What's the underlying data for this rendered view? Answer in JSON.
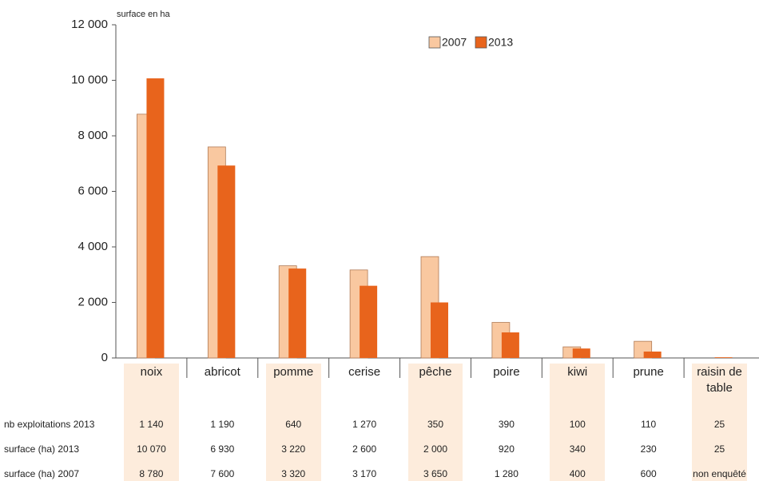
{
  "chart_data": {
    "type": "bar",
    "y_label": "surface en ha",
    "categories": [
      "noix",
      "abricot",
      "pomme",
      "cerise",
      "pêche",
      "poire",
      "kiwi",
      "prune",
      "raisin de table"
    ],
    "series": [
      {
        "name": "2007",
        "color": "#f9c8a0",
        "row_label": "surface (ha) 2007",
        "values": [
          8780,
          7600,
          3320,
          3170,
          3650,
          1280,
          400,
          600,
          null
        ],
        "value_labels": [
          "8 780",
          "7 600",
          "3 320",
          "3 170",
          "3 650",
          "1 280",
          "400",
          "600",
          "non enquêté"
        ]
      },
      {
        "name": "2013",
        "color": "#e8641c",
        "row_label": "surface (ha) 2013",
        "values": [
          10070,
          6930,
          3220,
          2600,
          2000,
          920,
          340,
          230,
          25
        ],
        "value_labels": [
          "10 070",
          "6 930",
          "3 220",
          "2 600",
          "2 000",
          "920",
          "340",
          "230",
          "25"
        ]
      }
    ],
    "table_rows": [
      {
        "label": "nb exploitations 2013",
        "values": [
          1140,
          1190,
          640,
          1270,
          350,
          390,
          100,
          110,
          25
        ],
        "value_labels": [
          "1 140",
          "1 190",
          "640",
          "1 270",
          "350",
          "390",
          "100",
          "110",
          "25"
        ]
      }
    ],
    "ylim": [
      0,
      12000
    ],
    "yticks": [
      0,
      {
        "value": 2000,
        "label": "2 000"
      },
      {
        "value": 4000,
        "label": "4 000"
      },
      {
        "value": 6000,
        "label": "6 000"
      },
      {
        "value": 8000,
        "label": "8 000"
      },
      {
        "value": 10000,
        "label": "10 000"
      },
      {
        "value": 12000,
        "label": "12 000"
      }
    ],
    "legend": "top"
  }
}
